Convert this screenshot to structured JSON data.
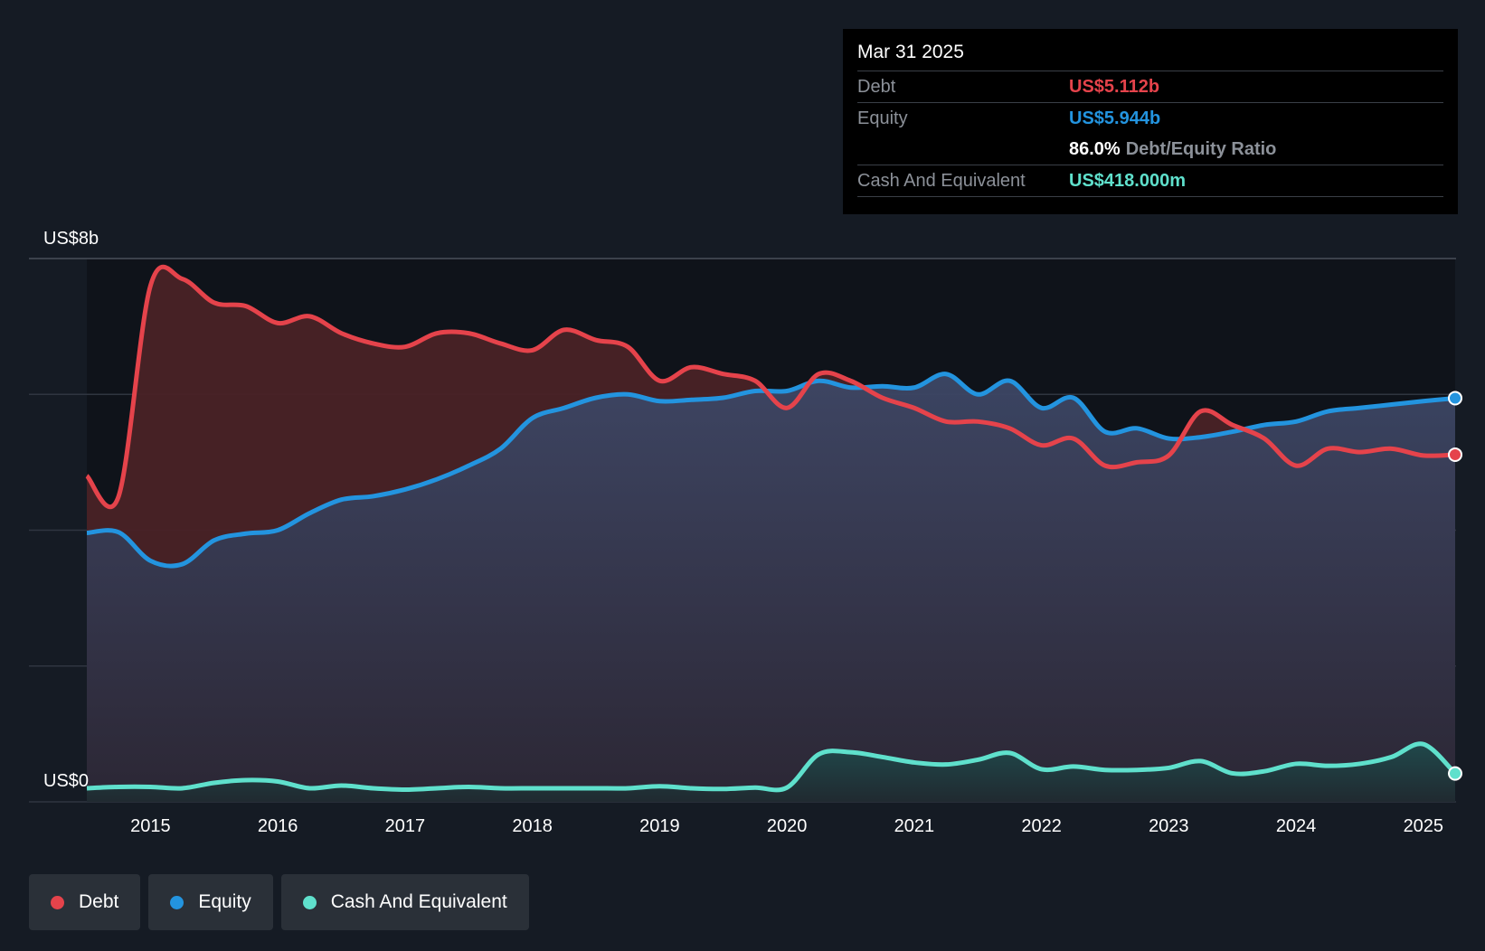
{
  "chart_data": {
    "type": "area",
    "ylabel_top": "US$8b",
    "ylabel_bottom": "US$0",
    "ylim": [
      0,
      8
    ],
    "xlim": [
      2014.5,
      2025.25
    ],
    "x_ticks": [
      "2015",
      "2016",
      "2017",
      "2018",
      "2019",
      "2020",
      "2021",
      "2022",
      "2023",
      "2024",
      "2025"
    ],
    "series": [
      {
        "name": "Debt",
        "color": "#e5434b",
        "points": [
          [
            2014.5,
            4.8
          ],
          [
            2014.75,
            4.5
          ],
          [
            2015.0,
            7.6
          ],
          [
            2015.25,
            7.7
          ],
          [
            2015.5,
            7.35
          ],
          [
            2015.75,
            7.3
          ],
          [
            2016.0,
            7.05
          ],
          [
            2016.25,
            7.15
          ],
          [
            2016.5,
            6.9
          ],
          [
            2016.75,
            6.75
          ],
          [
            2017.0,
            6.7
          ],
          [
            2017.25,
            6.9
          ],
          [
            2017.5,
            6.9
          ],
          [
            2017.75,
            6.75
          ],
          [
            2018.0,
            6.65
          ],
          [
            2018.25,
            6.95
          ],
          [
            2018.5,
            6.8
          ],
          [
            2018.75,
            6.7
          ],
          [
            2019.0,
            6.2
          ],
          [
            2019.25,
            6.4
          ],
          [
            2019.5,
            6.3
          ],
          [
            2019.75,
            6.2
          ],
          [
            2020.0,
            5.8
          ],
          [
            2020.25,
            6.3
          ],
          [
            2020.5,
            6.2
          ],
          [
            2020.75,
            5.95
          ],
          [
            2021.0,
            5.8
          ],
          [
            2021.25,
            5.6
          ],
          [
            2021.5,
            5.6
          ],
          [
            2021.75,
            5.5
          ],
          [
            2022.0,
            5.25
          ],
          [
            2022.25,
            5.35
          ],
          [
            2022.5,
            4.95
          ],
          [
            2022.75,
            5.0
          ],
          [
            2023.0,
            5.1
          ],
          [
            2023.25,
            5.75
          ],
          [
            2023.5,
            5.55
          ],
          [
            2023.75,
            5.35
          ],
          [
            2024.0,
            4.95
          ],
          [
            2024.25,
            5.2
          ],
          [
            2024.5,
            5.15
          ],
          [
            2024.75,
            5.2
          ],
          [
            2025.0,
            5.1
          ],
          [
            2025.25,
            5.112
          ]
        ]
      },
      {
        "name": "Equity",
        "color": "#2394df",
        "points": [
          [
            2014.5,
            3.96
          ],
          [
            2014.75,
            3.97
          ],
          [
            2015.0,
            3.55
          ],
          [
            2015.25,
            3.5
          ],
          [
            2015.5,
            3.85
          ],
          [
            2015.75,
            3.95
          ],
          [
            2016.0,
            4.0
          ],
          [
            2016.25,
            4.25
          ],
          [
            2016.5,
            4.45
          ],
          [
            2016.75,
            4.5
          ],
          [
            2017.0,
            4.6
          ],
          [
            2017.25,
            4.75
          ],
          [
            2017.5,
            4.95
          ],
          [
            2017.75,
            5.2
          ],
          [
            2018.0,
            5.65
          ],
          [
            2018.25,
            5.8
          ],
          [
            2018.5,
            5.95
          ],
          [
            2018.75,
            6.0
          ],
          [
            2019.0,
            5.9
          ],
          [
            2019.25,
            5.92
          ],
          [
            2019.5,
            5.95
          ],
          [
            2019.75,
            6.05
          ],
          [
            2020.0,
            6.05
          ],
          [
            2020.25,
            6.2
          ],
          [
            2020.5,
            6.1
          ],
          [
            2020.75,
            6.12
          ],
          [
            2021.0,
            6.1
          ],
          [
            2021.25,
            6.3
          ],
          [
            2021.5,
            6.0
          ],
          [
            2021.75,
            6.2
          ],
          [
            2022.0,
            5.8
          ],
          [
            2022.25,
            5.95
          ],
          [
            2022.5,
            5.45
          ],
          [
            2022.75,
            5.5
          ],
          [
            2023.0,
            5.35
          ],
          [
            2023.25,
            5.37
          ],
          [
            2023.5,
            5.45
          ],
          [
            2023.75,
            5.55
          ],
          [
            2024.0,
            5.6
          ],
          [
            2024.25,
            5.75
          ],
          [
            2024.5,
            5.8
          ],
          [
            2024.75,
            5.85
          ],
          [
            2025.0,
            5.9
          ],
          [
            2025.25,
            5.944
          ]
        ]
      },
      {
        "name": "Cash And Equivalent",
        "color": "#5fe0cc",
        "points": [
          [
            2014.5,
            0.2
          ],
          [
            2014.75,
            0.22
          ],
          [
            2015.0,
            0.22
          ],
          [
            2015.25,
            0.2
          ],
          [
            2015.5,
            0.28
          ],
          [
            2015.75,
            0.32
          ],
          [
            2016.0,
            0.3
          ],
          [
            2016.25,
            0.2
          ],
          [
            2016.5,
            0.24
          ],
          [
            2016.75,
            0.2
          ],
          [
            2017.0,
            0.18
          ],
          [
            2017.25,
            0.2
          ],
          [
            2017.5,
            0.22
          ],
          [
            2017.75,
            0.2
          ],
          [
            2018.0,
            0.2
          ],
          [
            2018.25,
            0.2
          ],
          [
            2018.5,
            0.2
          ],
          [
            2018.75,
            0.2
          ],
          [
            2019.0,
            0.23
          ],
          [
            2019.25,
            0.2
          ],
          [
            2019.5,
            0.19
          ],
          [
            2019.75,
            0.21
          ],
          [
            2020.0,
            0.21
          ],
          [
            2020.25,
            0.7
          ],
          [
            2020.5,
            0.73
          ],
          [
            2020.75,
            0.66
          ],
          [
            2021.0,
            0.58
          ],
          [
            2021.25,
            0.55
          ],
          [
            2021.5,
            0.62
          ],
          [
            2021.75,
            0.72
          ],
          [
            2022.0,
            0.48
          ],
          [
            2022.25,
            0.52
          ],
          [
            2022.5,
            0.47
          ],
          [
            2022.75,
            0.47
          ],
          [
            2023.0,
            0.5
          ],
          [
            2023.25,
            0.6
          ],
          [
            2023.5,
            0.42
          ],
          [
            2023.75,
            0.45
          ],
          [
            2024.0,
            0.56
          ],
          [
            2024.25,
            0.53
          ],
          [
            2024.5,
            0.56
          ],
          [
            2024.75,
            0.66
          ],
          [
            2025.0,
            0.85
          ],
          [
            2025.25,
            0.418
          ]
        ]
      }
    ]
  },
  "tooltip": {
    "date": "Mar 31 2025",
    "debt_label": "Debt",
    "debt_value": "US$5.112b",
    "equity_label": "Equity",
    "equity_value": "US$5.944b",
    "ratio_value": "86.0%",
    "ratio_label": "Debt/Equity Ratio",
    "cash_label": "Cash And Equivalent",
    "cash_value": "US$418.000m"
  },
  "legend": {
    "debt": "Debt",
    "equity": "Equity",
    "cash": "Cash And Equivalent"
  },
  "colors": {
    "debt": "#e5434b",
    "equity": "#2394df",
    "cash": "#5fe0cc",
    "background": "#151b24"
  }
}
